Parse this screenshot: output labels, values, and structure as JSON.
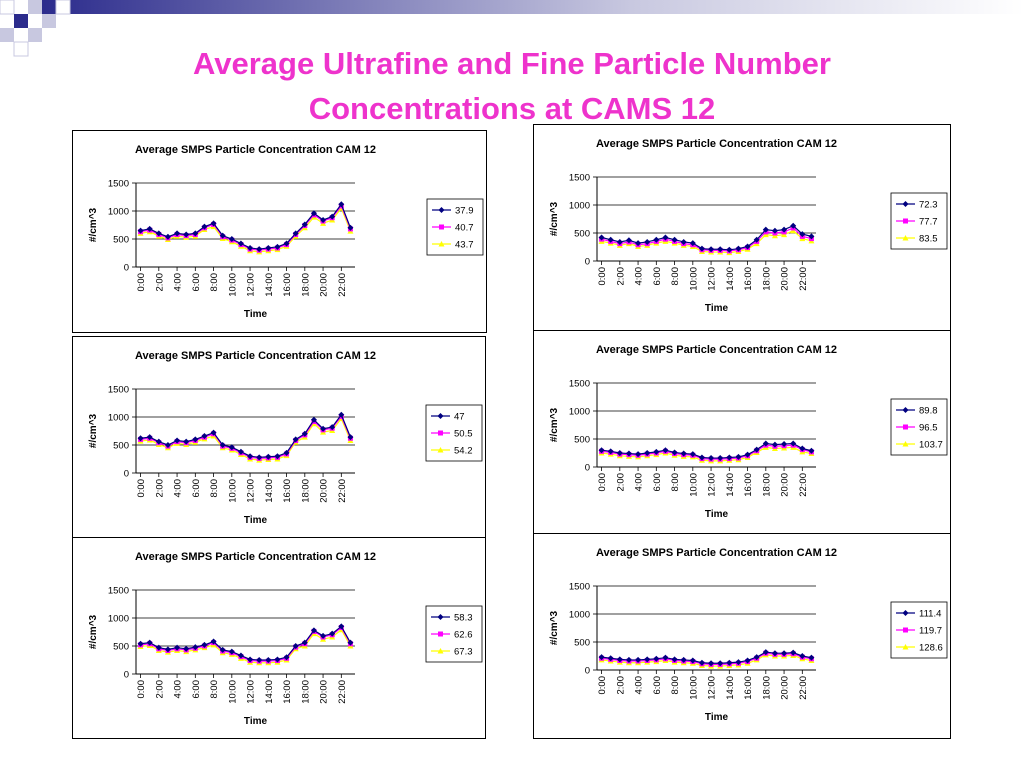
{
  "slide": {
    "title_line1": "Average Ultrafine and Fine Particle Number",
    "title_line2": "Concentrations at CAMS 12"
  },
  "colors": {
    "title": "#ee33cc",
    "series": [
      "#000080",
      "#ff00ff",
      "#ffff00"
    ],
    "decor_blue": "#2b2b8c",
    "decor_light": "#c8c8e0"
  },
  "chart_data": [
    {
      "type": "line",
      "title": "Average SMPS Particle Concentration CAM 12",
      "xlabel": "Time",
      "ylabel": "#/cm^3",
      "ylim": [
        0,
        1500
      ],
      "yticks": [
        "0",
        "500",
        "1000",
        "1500"
      ],
      "xticks": [
        "0:00",
        "2:00",
        "4:00",
        "6:00",
        "8:00",
        "10:00",
        "12:00",
        "14:00",
        "16:00",
        "18:00",
        "20:00",
        "22:00"
      ],
      "grid": "horizontal",
      "legend_position": "right",
      "x": [
        "0:00",
        "1:00",
        "2:00",
        "3:00",
        "4:00",
        "5:00",
        "6:00",
        "7:00",
        "8:00",
        "9:00",
        "10:00",
        "11:00",
        "12:00",
        "13:00",
        "14:00",
        "15:00",
        "16:00",
        "17:00",
        "18:00",
        "19:00",
        "20:00",
        "21:00",
        "22:00",
        "23:00"
      ],
      "series": [
        {
          "name": "37.9",
          "values": [
            650,
            680,
            600,
            540,
            600,
            580,
            600,
            720,
            780,
            560,
            500,
            420,
            340,
            320,
            340,
            360,
            420,
            600,
            760,
            960,
            840,
            900,
            1120,
            700
          ]
        },
        {
          "name": "40.7",
          "values": [
            630,
            660,
            580,
            520,
            580,
            560,
            580,
            700,
            760,
            540,
            480,
            400,
            320,
            300,
            320,
            340,
            400,
            580,
            740,
            930,
            820,
            880,
            1090,
            680
          ]
        },
        {
          "name": "43.7",
          "values": [
            600,
            630,
            550,
            490,
            550,
            530,
            550,
            670,
            720,
            510,
            450,
            370,
            290,
            270,
            290,
            310,
            370,
            550,
            700,
            890,
            780,
            840,
            1050,
            640
          ]
        }
      ]
    },
    {
      "type": "line",
      "title": "Average SMPS Particle Concentration CAM 12",
      "xlabel": "Time",
      "ylabel": "#/cm^3",
      "ylim": [
        0,
        1500
      ],
      "yticks": [
        "0",
        "500",
        "1000",
        "1500"
      ],
      "xticks": [
        "0:00",
        "2:00",
        "4:00",
        "6:00",
        "8:00",
        "10:00",
        "12:00",
        "14:00",
        "16:00",
        "18:00",
        "20:00",
        "22:00"
      ],
      "grid": "horizontal",
      "legend_position": "right",
      "x": [
        "0:00",
        "1:00",
        "2:00",
        "3:00",
        "4:00",
        "5:00",
        "6:00",
        "7:00",
        "8:00",
        "9:00",
        "10:00",
        "11:00",
        "12:00",
        "13:00",
        "14:00",
        "15:00",
        "16:00",
        "17:00",
        "18:00",
        "19:00",
        "20:00",
        "21:00",
        "22:00",
        "23:00"
      ],
      "series": [
        {
          "name": "72.3",
          "values": [
            420,
            380,
            340,
            370,
            320,
            340,
            380,
            420,
            380,
            340,
            320,
            220,
            210,
            210,
            200,
            220,
            260,
            380,
            560,
            540,
            560,
            630,
            480,
            440
          ]
        },
        {
          "name": "77.7",
          "values": [
            390,
            350,
            310,
            340,
            290,
            310,
            350,
            390,
            350,
            310,
            290,
            200,
            190,
            190,
            180,
            200,
            240,
            350,
            520,
            500,
            520,
            590,
            440,
            400
          ]
        },
        {
          "name": "83.5",
          "values": [
            350,
            320,
            280,
            310,
            260,
            280,
            320,
            350,
            320,
            280,
            260,
            170,
            160,
            160,
            150,
            170,
            210,
            310,
            470,
            450,
            470,
            540,
            400,
            360
          ]
        }
      ]
    },
    {
      "type": "line",
      "title": "Average SMPS Particle Concentration CAM 12",
      "xlabel": "Time",
      "ylabel": "#/cm^3",
      "ylim": [
        0,
        1500
      ],
      "yticks": [
        "0",
        "500",
        "1000",
        "1500"
      ],
      "xticks": [
        "0:00",
        "2:00",
        "4:00",
        "6:00",
        "8:00",
        "10:00",
        "12:00",
        "14:00",
        "16:00",
        "18:00",
        "20:00",
        "22:00"
      ],
      "grid": "horizontal",
      "legend_position": "right",
      "x": [
        "0:00",
        "1:00",
        "2:00",
        "3:00",
        "4:00",
        "5:00",
        "6:00",
        "7:00",
        "8:00",
        "9:00",
        "10:00",
        "11:00",
        "12:00",
        "13:00",
        "14:00",
        "15:00",
        "16:00",
        "17:00",
        "18:00",
        "19:00",
        "20:00",
        "21:00",
        "22:00",
        "23:00"
      ],
      "series": [
        {
          "name": "47",
          "values": [
            620,
            640,
            560,
            500,
            580,
            560,
            600,
            660,
            720,
            500,
            460,
            380,
            300,
            280,
            290,
            300,
            360,
            600,
            700,
            950,
            790,
            820,
            1040,
            640
          ]
        },
        {
          "name": "50.5",
          "values": [
            600,
            620,
            540,
            480,
            560,
            540,
            580,
            640,
            700,
            480,
            440,
            360,
            280,
            260,
            270,
            280,
            340,
            580,
            680,
            920,
            770,
            800,
            1010,
            620
          ]
        },
        {
          "name": "54.2",
          "values": [
            570,
            590,
            510,
            450,
            530,
            510,
            550,
            610,
            660,
            450,
            410,
            330,
            250,
            230,
            240,
            250,
            310,
            550,
            640,
            880,
            730,
            760,
            970,
            580
          ]
        }
      ]
    },
    {
      "type": "line",
      "title": "Average SMPS Particle Concentration CAM 12",
      "xlabel": "Time",
      "ylabel": "#/cm^3",
      "ylim": [
        0,
        1500
      ],
      "yticks": [
        "0",
        "500",
        "1000",
        "1500"
      ],
      "xticks": [
        "0:00",
        "2:00",
        "4:00",
        "6:00",
        "8:00",
        "10:00",
        "12:00",
        "14:00",
        "16:00",
        "18:00",
        "20:00",
        "22:00"
      ],
      "grid": "horizontal",
      "legend_position": "right",
      "x": [
        "0:00",
        "1:00",
        "2:00",
        "3:00",
        "4:00",
        "5:00",
        "6:00",
        "7:00",
        "8:00",
        "9:00",
        "10:00",
        "11:00",
        "12:00",
        "13:00",
        "14:00",
        "15:00",
        "16:00",
        "17:00",
        "18:00",
        "19:00",
        "20:00",
        "21:00",
        "22:00",
        "23:00"
      ],
      "series": [
        {
          "name": "89.8",
          "values": [
            300,
            280,
            250,
            240,
            230,
            250,
            270,
            300,
            260,
            240,
            230,
            170,
            160,
            160,
            170,
            180,
            220,
            310,
            420,
            400,
            410,
            420,
            330,
            290
          ]
        },
        {
          "name": "96.5",
          "values": [
            280,
            260,
            230,
            220,
            210,
            230,
            250,
            280,
            240,
            220,
            210,
            150,
            140,
            140,
            150,
            160,
            200,
            290,
            390,
            370,
            380,
            390,
            310,
            270
          ]
        },
        {
          "name": "103.7",
          "values": [
            250,
            230,
            200,
            190,
            180,
            200,
            220,
            250,
            210,
            190,
            180,
            120,
            110,
            110,
            120,
            130,
            170,
            260,
            350,
            330,
            340,
            350,
            270,
            240
          ]
        }
      ]
    },
    {
      "type": "line",
      "title": "Average SMPS Particle Concentration CAM 12",
      "xlabel": "Time",
      "ylabel": "#/cm^3",
      "ylim": [
        0,
        1500
      ],
      "yticks": [
        "0",
        "500",
        "1000",
        "1500"
      ],
      "xticks": [
        "0:00",
        "2:00",
        "4:00",
        "6:00",
        "8:00",
        "10:00",
        "12:00",
        "14:00",
        "16:00",
        "18:00",
        "20:00",
        "22:00"
      ],
      "grid": "horizontal",
      "legend_position": "right",
      "x": [
        "0:00",
        "1:00",
        "2:00",
        "3:00",
        "4:00",
        "5:00",
        "6:00",
        "7:00",
        "8:00",
        "9:00",
        "10:00",
        "11:00",
        "12:00",
        "13:00",
        "14:00",
        "15:00",
        "16:00",
        "17:00",
        "18:00",
        "19:00",
        "20:00",
        "21:00",
        "22:00",
        "23:00"
      ],
      "series": [
        {
          "name": "58.3",
          "values": [
            540,
            560,
            470,
            440,
            470,
            450,
            480,
            520,
            580,
            430,
            400,
            330,
            260,
            250,
            250,
            260,
            300,
            500,
            560,
            780,
            680,
            720,
            850,
            560
          ]
        },
        {
          "name": "62.6",
          "values": [
            520,
            540,
            450,
            420,
            450,
            430,
            460,
            500,
            560,
            410,
            380,
            310,
            240,
            230,
            230,
            240,
            280,
            480,
            540,
            760,
            660,
            700,
            830,
            540
          ]
        },
        {
          "name": "67.3",
          "values": [
            490,
            510,
            420,
            390,
            420,
            400,
            430,
            470,
            520,
            380,
            350,
            280,
            210,
            200,
            200,
            210,
            250,
            450,
            500,
            720,
            620,
            660,
            790,
            500
          ]
        }
      ]
    },
    {
      "type": "line",
      "title": "Average SMPS Particle Concentration CAM 12",
      "xlabel": "Time",
      "ylabel": "#/cm^3",
      "ylim": [
        0,
        1500
      ],
      "yticks": [
        "0",
        "500",
        "1000",
        "1500"
      ],
      "xticks": [
        "0:00",
        "2:00",
        "4:00",
        "6:00",
        "8:00",
        "10:00",
        "12:00",
        "14:00",
        "16:00",
        "18:00",
        "20:00",
        "22:00"
      ],
      "grid": "horizontal",
      "legend_position": "right",
      "x": [
        "0:00",
        "1:00",
        "2:00",
        "3:00",
        "4:00",
        "5:00",
        "6:00",
        "7:00",
        "8:00",
        "9:00",
        "10:00",
        "11:00",
        "12:00",
        "13:00",
        "14:00",
        "15:00",
        "16:00",
        "17:00",
        "18:00",
        "19:00",
        "20:00",
        "21:00",
        "22:00",
        "23:00"
      ],
      "series": [
        {
          "name": "111.4",
          "values": [
            230,
            210,
            190,
            180,
            180,
            190,
            200,
            220,
            190,
            180,
            170,
            130,
            120,
            120,
            130,
            140,
            170,
            230,
            320,
            300,
            300,
            310,
            250,
            220
          ]
        },
        {
          "name": "119.7",
          "values": [
            210,
            190,
            170,
            160,
            160,
            170,
            180,
            200,
            170,
            160,
            150,
            110,
            100,
            100,
            110,
            120,
            150,
            210,
            300,
            280,
            280,
            290,
            230,
            200
          ]
        },
        {
          "name": "128.6",
          "values": [
            180,
            160,
            140,
            130,
            130,
            140,
            150,
            170,
            140,
            130,
            120,
            80,
            70,
            70,
            80,
            90,
            120,
            180,
            270,
            250,
            250,
            260,
            200,
            170
          ]
        }
      ]
    }
  ]
}
